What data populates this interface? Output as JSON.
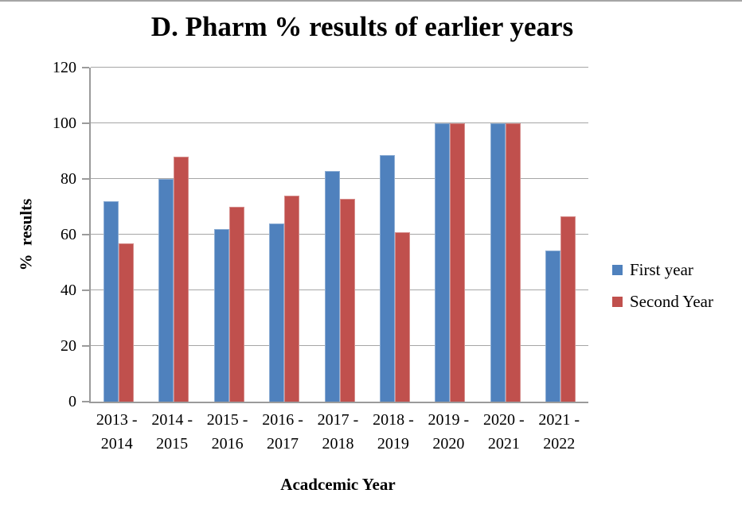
{
  "window": {
    "background": "#FFFFFF",
    "top_border_color": "#A6A6A6"
  },
  "chart_data": {
    "type": "bar",
    "title": "D. Pharm % results of earlier years",
    "xlabel": "Acadcemic Year",
    "ylabel": "%  results",
    "categories": [
      "2013 -\n2014",
      "2014 -\n2015",
      "2015 -\n2016",
      "2016 -\n2017",
      "2017 -\n2018",
      "2018 -\n2019",
      "2019 -\n2020",
      "2020 -\n2021",
      "2021 -\n2022"
    ],
    "series": [
      {
        "name": "First year",
        "color": "#4F81BD",
        "values": [
          72,
          80,
          62,
          64,
          83,
          88.5,
          100,
          100,
          54.3
        ]
      },
      {
        "name": "Second Year",
        "color": "#C0504D",
        "values": [
          57,
          88,
          70,
          74,
          73,
          61,
          100,
          100,
          66.7
        ]
      }
    ],
    "ylim": [
      0,
      120
    ],
    "yticks": [
      0,
      20,
      40,
      60,
      80,
      100,
      120
    ],
    "grid": true,
    "legend_position": "right",
    "colors": {
      "gridline": "#A6A6A6",
      "axis_line": "#9B9B9B"
    }
  }
}
